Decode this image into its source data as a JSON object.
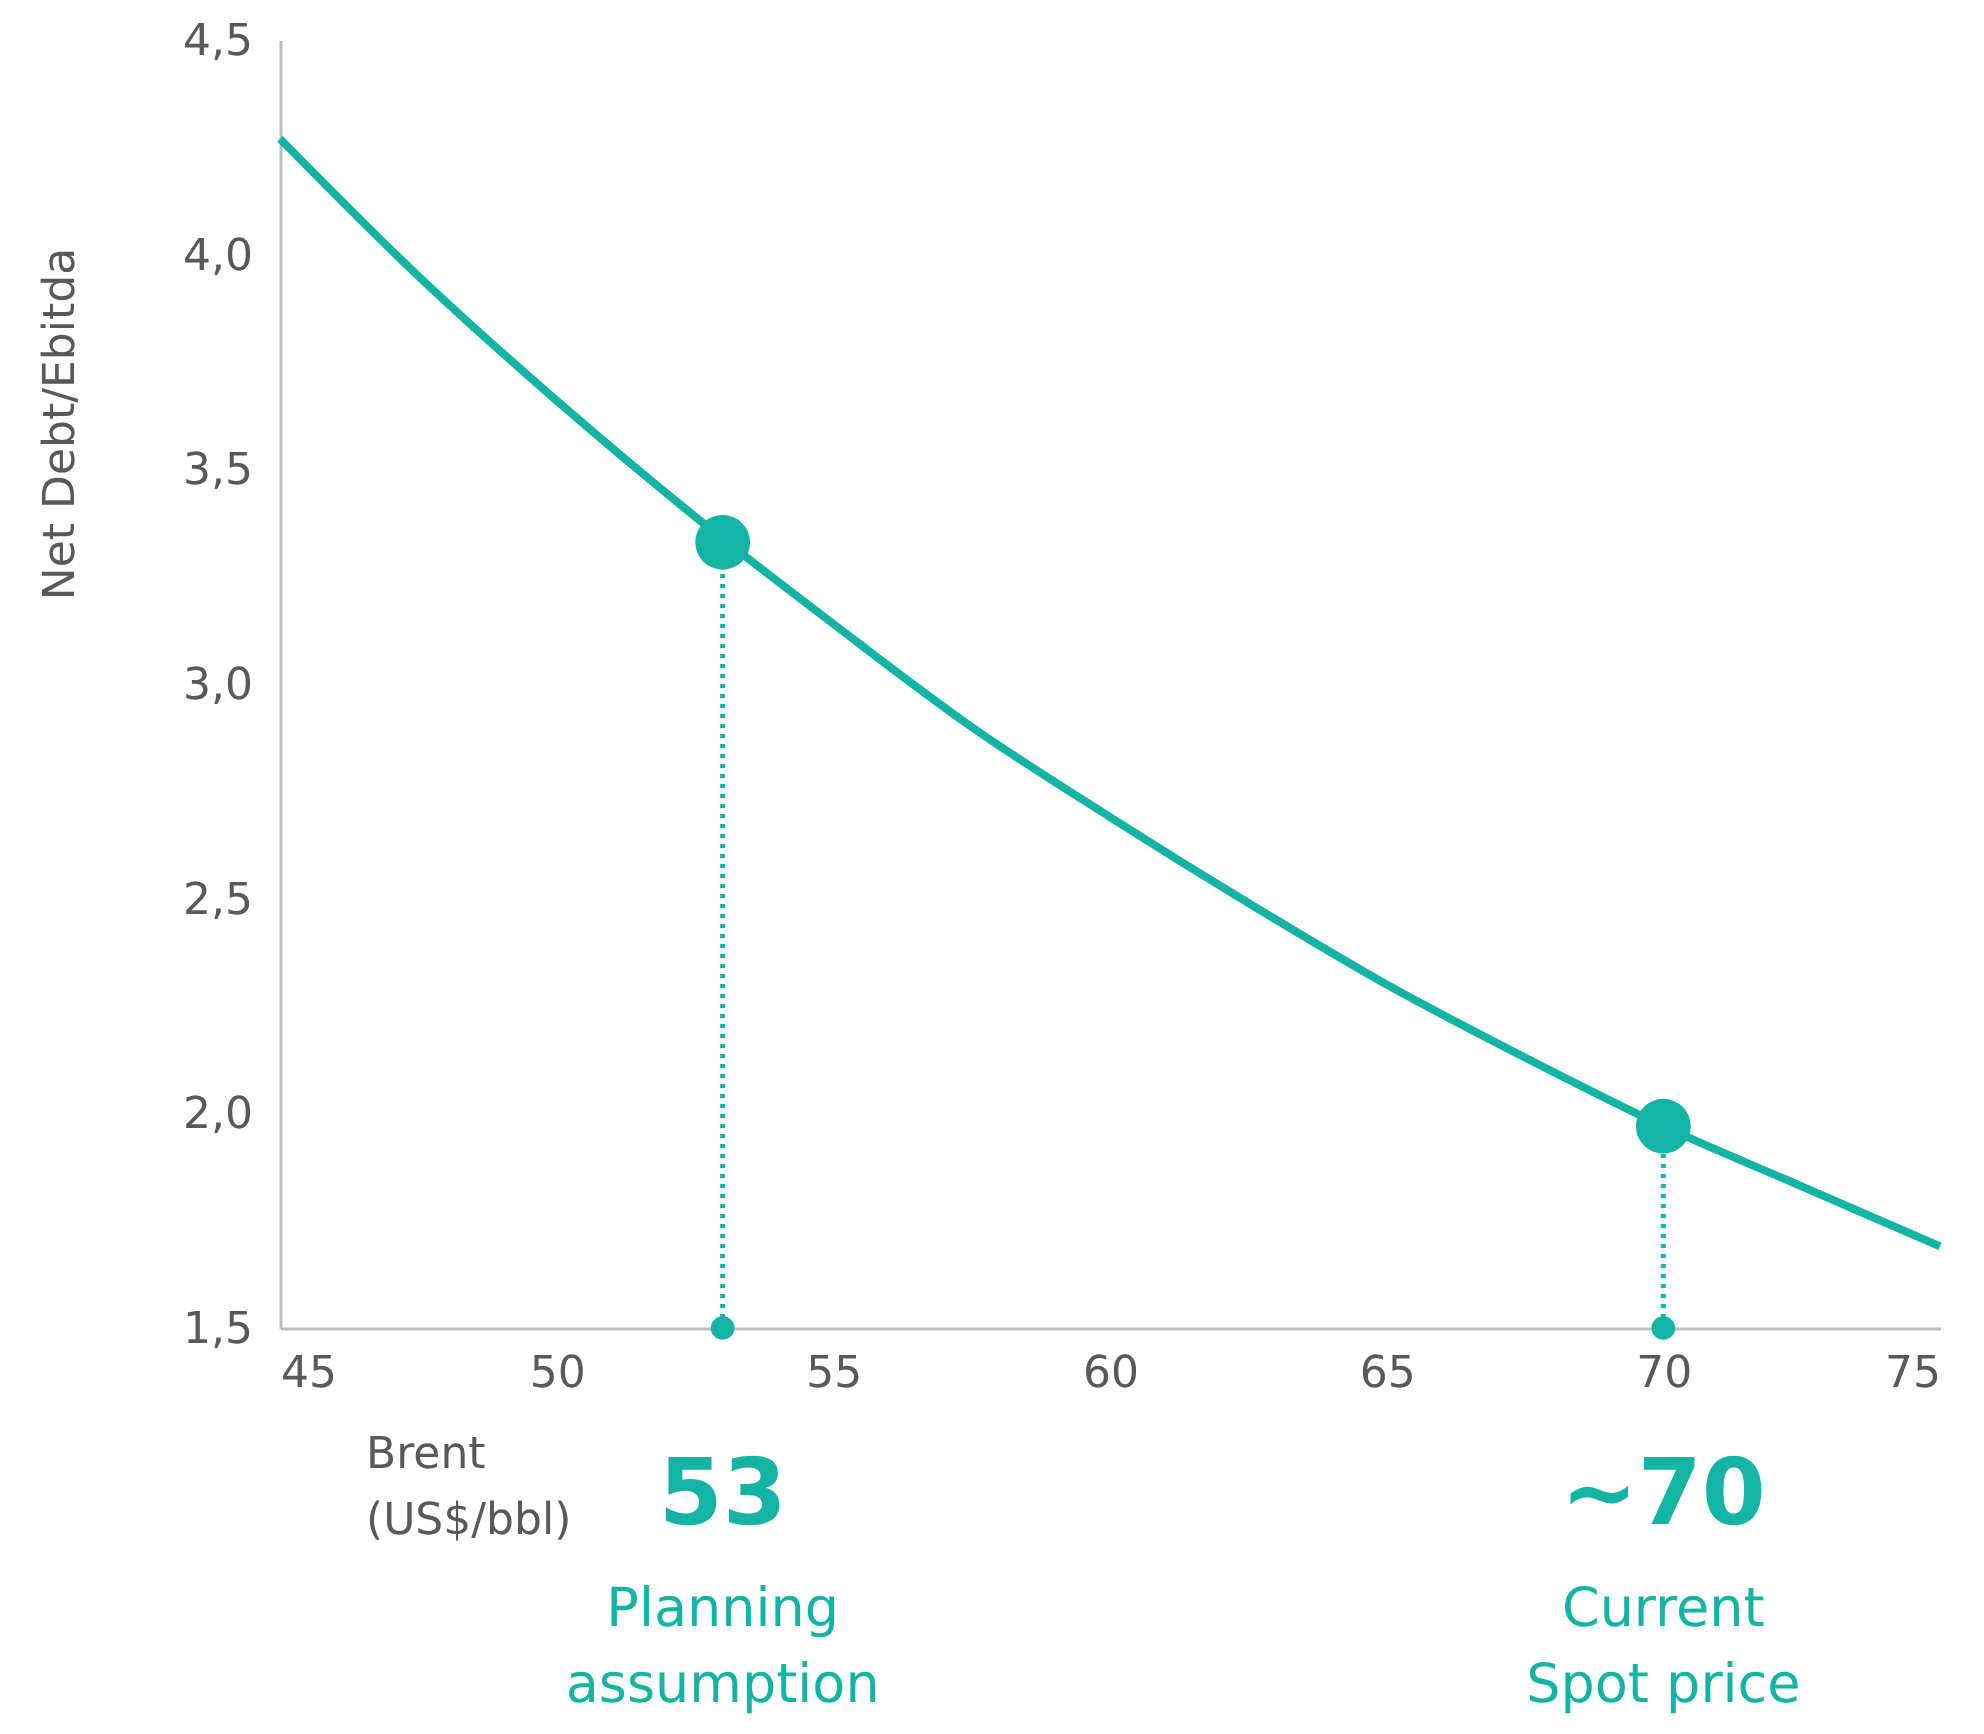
{
  "chart_data": {
    "type": "line",
    "xlabel": "Brent (US$/bbl)",
    "ylabel": "Net Debt/Ebitda",
    "xlim": [
      45,
      75
    ],
    "xticks": [
      45,
      50,
      55,
      60,
      65,
      70,
      75
    ],
    "ylim": [
      1.5,
      4.5
    ],
    "yticks": [
      {
        "value": 1.5,
        "label": "1,5"
      },
      {
        "value": 2.0,
        "label": "2,0"
      },
      {
        "value": 2.5,
        "label": "2,5"
      },
      {
        "value": 3.0,
        "label": "3,0"
      },
      {
        "value": 3.5,
        "label": "3,5"
      },
      {
        "value": 4.0,
        "label": "4,0"
      },
      {
        "value": 4.5,
        "label": "4,5"
      }
    ],
    "grid": false,
    "series": [
      {
        "color": "#14b4a4",
        "x": [
          45,
          47.5,
          50,
          52.5,
          55,
          57.5,
          60,
          62.5,
          65,
          67.5,
          70,
          72.5,
          75
        ],
        "values": [
          4.27,
          3.95,
          3.66,
          3.39,
          3.14,
          2.9,
          2.69,
          2.49,
          2.3,
          2.13,
          1.97,
          1.83,
          1.69
        ]
      },
      {
        "type": "scatter",
        "color": "#14b4a4",
        "x": [
          53,
          70
        ],
        "values": [
          3.33,
          1.97
        ]
      },
      {
        "type": "scatter",
        "color": "#14b4a4",
        "x": [
          53,
          70
        ],
        "values": [
          1.5,
          1.5
        ]
      }
    ],
    "ref_lines": [
      {
        "axis": "x",
        "value": 53,
        "color": "#14b4a4",
        "line_style": "dotted"
      },
      {
        "axis": "x",
        "value": 70,
        "color": "#14b4a4",
        "line_style": "dotted"
      }
    ],
    "annotations": [
      "53",
      "Planning assumption",
      "~70",
      "Current Spot price"
    ]
  }
}
